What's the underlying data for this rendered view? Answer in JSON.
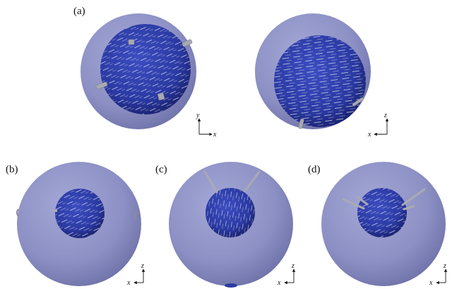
{
  "panels": [
    {
      "label": "(a)"
    },
    {
      "label": "(b)"
    },
    {
      "label": "(c)"
    },
    {
      "label": "(d)"
    }
  ],
  "axes": {
    "a_left": {
      "horizontal": "x",
      "vertical": "y"
    },
    "a_right": {
      "horizontal": "x",
      "vertical": "z"
    },
    "b": {
      "horizontal": "x",
      "vertical": "z"
    },
    "c": {
      "horizontal": "x",
      "vertical": "z"
    },
    "d": {
      "horizontal": "x",
      "vertical": "z"
    }
  },
  "colors": {
    "outer_sphere": "#8c90c4",
    "inner_sphere": "#2b3aa3",
    "streak": "#e8ecff",
    "rod": "#a9aab3"
  }
}
